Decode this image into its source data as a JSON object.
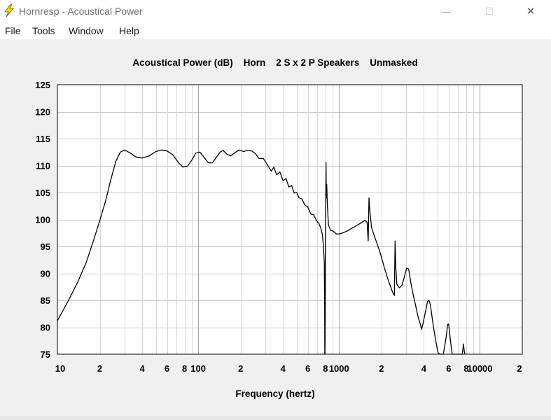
{
  "window": {
    "title": "Hornresp - Acoustical Power",
    "minimize_glyph": "—",
    "maximize_glyph": "☐",
    "close_glyph": "✕"
  },
  "menu": {
    "items": [
      {
        "label": "File"
      },
      {
        "label": "Tools"
      },
      {
        "label": "Window"
      },
      {
        "label": "Help"
      }
    ]
  },
  "colors": {
    "icon_yellow": "#f5d800",
    "grid": "#c8c8c8",
    "plot_bg": "#ffffff",
    "curve": "#000000"
  },
  "chart_data": {
    "type": "line",
    "title": "Acoustical Power (dB)    Horn    2 S x 2 P Speakers    Unmasked",
    "xlabel": "Frequency (hertz)",
    "ylabel": "",
    "x_scale": "log",
    "xlim": [
      10,
      20000
    ],
    "ylim": [
      75,
      125
    ],
    "grid": true,
    "y_ticks": [
      125,
      120,
      115,
      110,
      105,
      100,
      95,
      90,
      85,
      80,
      75
    ],
    "x_ticks": [
      {
        "value": 10,
        "label": "10"
      },
      {
        "value": 20,
        "label": "2"
      },
      {
        "value": 40,
        "label": "4"
      },
      {
        "value": 60,
        "label": "6"
      },
      {
        "value": 80,
        "label": "8"
      },
      {
        "value": 100,
        "label": "100"
      },
      {
        "value": 200,
        "label": "2"
      },
      {
        "value": 400,
        "label": "4"
      },
      {
        "value": 600,
        "label": "6"
      },
      {
        "value": 800,
        "label": "8"
      },
      {
        "value": 1000,
        "label": "1000"
      },
      {
        "value": 2000,
        "label": "2"
      },
      {
        "value": 4000,
        "label": "4"
      },
      {
        "value": 6000,
        "label": "6"
      },
      {
        "value": 8000,
        "label": "8"
      },
      {
        "value": 10000,
        "label": "10000"
      },
      {
        "value": 20000,
        "label": "2"
      }
    ],
    "series": [
      {
        "points": [
          [
            10,
            81.2
          ],
          [
            12,
            85
          ],
          [
            14,
            88.5
          ],
          [
            16,
            92
          ],
          [
            18,
            96
          ],
          [
            20,
            99.8
          ],
          [
            22,
            103.5
          ],
          [
            24,
            107.5
          ],
          [
            26,
            110.8
          ],
          [
            28,
            112.5
          ],
          [
            30,
            112.9
          ],
          [
            33,
            112.3
          ],
          [
            36,
            111.6
          ],
          [
            40,
            111.4
          ],
          [
            45,
            111.8
          ],
          [
            50,
            112.6
          ],
          [
            55,
            112.9
          ],
          [
            60,
            112.7
          ],
          [
            66,
            112.0
          ],
          [
            72,
            110.6
          ],
          [
            78,
            109.7
          ],
          [
            84,
            109.9
          ],
          [
            90,
            111.0
          ],
          [
            96,
            112.3
          ],
          [
            103,
            112.5
          ],
          [
            110,
            111.5
          ],
          [
            118,
            110.5
          ],
          [
            126,
            110.5
          ],
          [
            135,
            111.6
          ],
          [
            143,
            112.5
          ],
          [
            150,
            112.8
          ],
          [
            160,
            112.1
          ],
          [
            170,
            111.8
          ],
          [
            180,
            112.3
          ],
          [
            195,
            112.9
          ],
          [
            210,
            112.6
          ],
          [
            225,
            112.8
          ],
          [
            240,
            112.7
          ],
          [
            255,
            112.2
          ],
          [
            270,
            111.3
          ],
          [
            290,
            111.3
          ],
          [
            310,
            110.1
          ],
          [
            330,
            109.0
          ],
          [
            345,
            109.7
          ],
          [
            360,
            108.3
          ],
          [
            380,
            108.8
          ],
          [
            400,
            107.2
          ],
          [
            420,
            107.6
          ],
          [
            440,
            106.0
          ],
          [
            460,
            106.3
          ],
          [
            480,
            104.9
          ],
          [
            500,
            105.0
          ],
          [
            520,
            104.0
          ],
          [
            545,
            103.8
          ],
          [
            570,
            102.7
          ],
          [
            600,
            102.3
          ],
          [
            630,
            101.0
          ],
          [
            660,
            100.9
          ],
          [
            690,
            99.8
          ],
          [
            720,
            99.2
          ],
          [
            740,
            98.5
          ],
          [
            760,
            97.3
          ],
          [
            775,
            95.0
          ],
          [
            785,
            92.0
          ],
          [
            790,
            84.0
          ],
          [
            792,
            75.0
          ],
          [
            794,
            75.0
          ],
          [
            797,
            84.0
          ],
          [
            800,
            96.0
          ],
          [
            808,
            110.6
          ],
          [
            812,
            104.0
          ],
          [
            818,
            106.5
          ],
          [
            825,
            103.0
          ],
          [
            840,
            99.0
          ],
          [
            870,
            98.0
          ],
          [
            910,
            97.8
          ],
          [
            960,
            97.3
          ],
          [
            1000,
            97.3
          ],
          [
            1060,
            97.5
          ],
          [
            1130,
            97.8
          ],
          [
            1220,
            98.3
          ],
          [
            1320,
            98.8
          ],
          [
            1420,
            99.3
          ],
          [
            1520,
            99.8
          ],
          [
            1580,
            99.5
          ],
          [
            1610,
            96.0
          ],
          [
            1630,
            104.0
          ],
          [
            1650,
            102.0
          ],
          [
            1700,
            98.5
          ],
          [
            1800,
            96.6
          ],
          [
            1950,
            94.0
          ],
          [
            2100,
            91.0
          ],
          [
            2250,
            88.5
          ],
          [
            2400,
            86.5
          ],
          [
            2470,
            85.9
          ],
          [
            2500,
            96.0
          ],
          [
            2530,
            91.0
          ],
          [
            2570,
            88.0
          ],
          [
            2680,
            87.3
          ],
          [
            2800,
            87.8
          ],
          [
            2920,
            89.5
          ],
          [
            3020,
            91.0
          ],
          [
            3120,
            90.8
          ],
          [
            3220,
            88.5
          ],
          [
            3350,
            86.2
          ],
          [
            3500,
            84.0
          ],
          [
            3650,
            81.8
          ],
          [
            3780,
            80.5
          ],
          [
            3850,
            79.6
          ],
          [
            3930,
            80.5
          ],
          [
            4100,
            82.8
          ],
          [
            4250,
            84.8
          ],
          [
            4350,
            85.0
          ],
          [
            4450,
            84.2
          ],
          [
            4650,
            80.5
          ],
          [
            4850,
            77.6
          ],
          [
            5050,
            75.2
          ],
          [
            5200,
            75.0
          ],
          [
            5500,
            75.0
          ],
          [
            5750,
            78.0
          ],
          [
            5900,
            80.5
          ],
          [
            6000,
            80.6
          ],
          [
            6150,
            78.0
          ],
          [
            6350,
            75.0
          ],
          [
            7500,
            75.0
          ],
          [
            7650,
            76.9
          ],
          [
            7750,
            75.5
          ],
          [
            7850,
            75.0
          ]
        ]
      }
    ]
  }
}
